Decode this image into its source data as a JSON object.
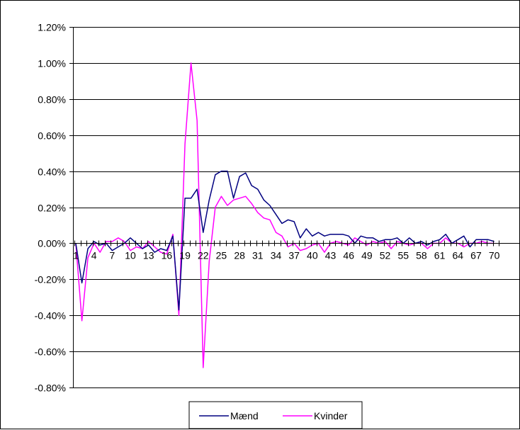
{
  "chart_data": {
    "type": "line",
    "title": "",
    "xlabel": "",
    "ylabel": "",
    "ylim": [
      -0.008,
      0.012
    ],
    "ytick_step": 0.002,
    "grid": "horizontal",
    "legend_position": "bottom",
    "x_tick_labels": [
      "1",
      "4",
      "7",
      "10",
      "13",
      "16",
      "19",
      "22",
      "25",
      "28",
      "31",
      "34",
      "37",
      "40",
      "43",
      "46",
      "49",
      "52",
      "55",
      "58",
      "61",
      "64",
      "67",
      "70"
    ],
    "series": [
      {
        "name": "Mænd",
        "color": "#000080",
        "values": [
          0.0,
          -0.0022,
          -0.0003,
          0.0001,
          -0.0001,
          0.0,
          -0.0004,
          -0.0002,
          0.0,
          0.0003,
          0.0,
          -0.0003,
          -0.0001,
          -0.0005,
          -0.0003,
          -0.0004,
          0.0004,
          -0.0037,
          0.0025,
          0.0025,
          0.003,
          0.0006,
          0.0024,
          0.0038,
          0.004,
          0.004,
          0.0025,
          0.0037,
          0.0039,
          0.0032,
          0.003,
          0.0024,
          0.0021,
          0.0016,
          0.0011,
          0.0013,
          0.0012,
          0.0003,
          0.0008,
          0.0004,
          0.0006,
          0.0004,
          0.0005,
          0.0005,
          0.0005,
          0.0004,
          0.0,
          0.0004,
          0.0003,
          0.0003,
          0.0001,
          0.0002,
          0.0002,
          0.0003,
          0.0,
          0.0003,
          0.0,
          0.0001,
          -0.0001,
          0.0001,
          0.0002,
          0.0005,
          0.0,
          0.0002,
          0.0004,
          -0.0002,
          0.0002,
          0.0002,
          0.0002,
          0.0001
        ]
      },
      {
        "name": "Kvinder",
        "color": "#FF00FF",
        "values": [
          0.0,
          -0.0043,
          -0.0008,
          0.0,
          -0.0005,
          0.0001,
          0.0001,
          0.0003,
          0.0001,
          -0.0004,
          -0.0002,
          -0.0003,
          0.0001,
          -0.0002,
          -0.0005,
          -0.0006,
          0.0005,
          -0.004,
          0.0055,
          0.01,
          0.0068,
          -0.0069,
          -0.001,
          0.002,
          0.0026,
          0.0021,
          0.0024,
          0.0025,
          0.0026,
          0.0022,
          0.0017,
          0.0014,
          0.0013,
          0.0006,
          0.0004,
          -0.0002,
          0.0,
          -0.0004,
          -0.0003,
          -0.0001,
          0.0,
          -0.0005,
          0.0,
          0.0001,
          0.0,
          -0.0001,
          0.0003,
          0.0001,
          -0.0001,
          0.0001,
          0.0,
          0.0001,
          -0.0003,
          0.0001,
          0.0,
          -0.0001,
          0.0,
          0.0,
          -0.0003,
          0.0,
          0.0,
          0.0003,
          0.0,
          0.0,
          -0.0002,
          0.0,
          0.0,
          0.0001,
          0.0,
          0.0
        ]
      }
    ]
  }
}
